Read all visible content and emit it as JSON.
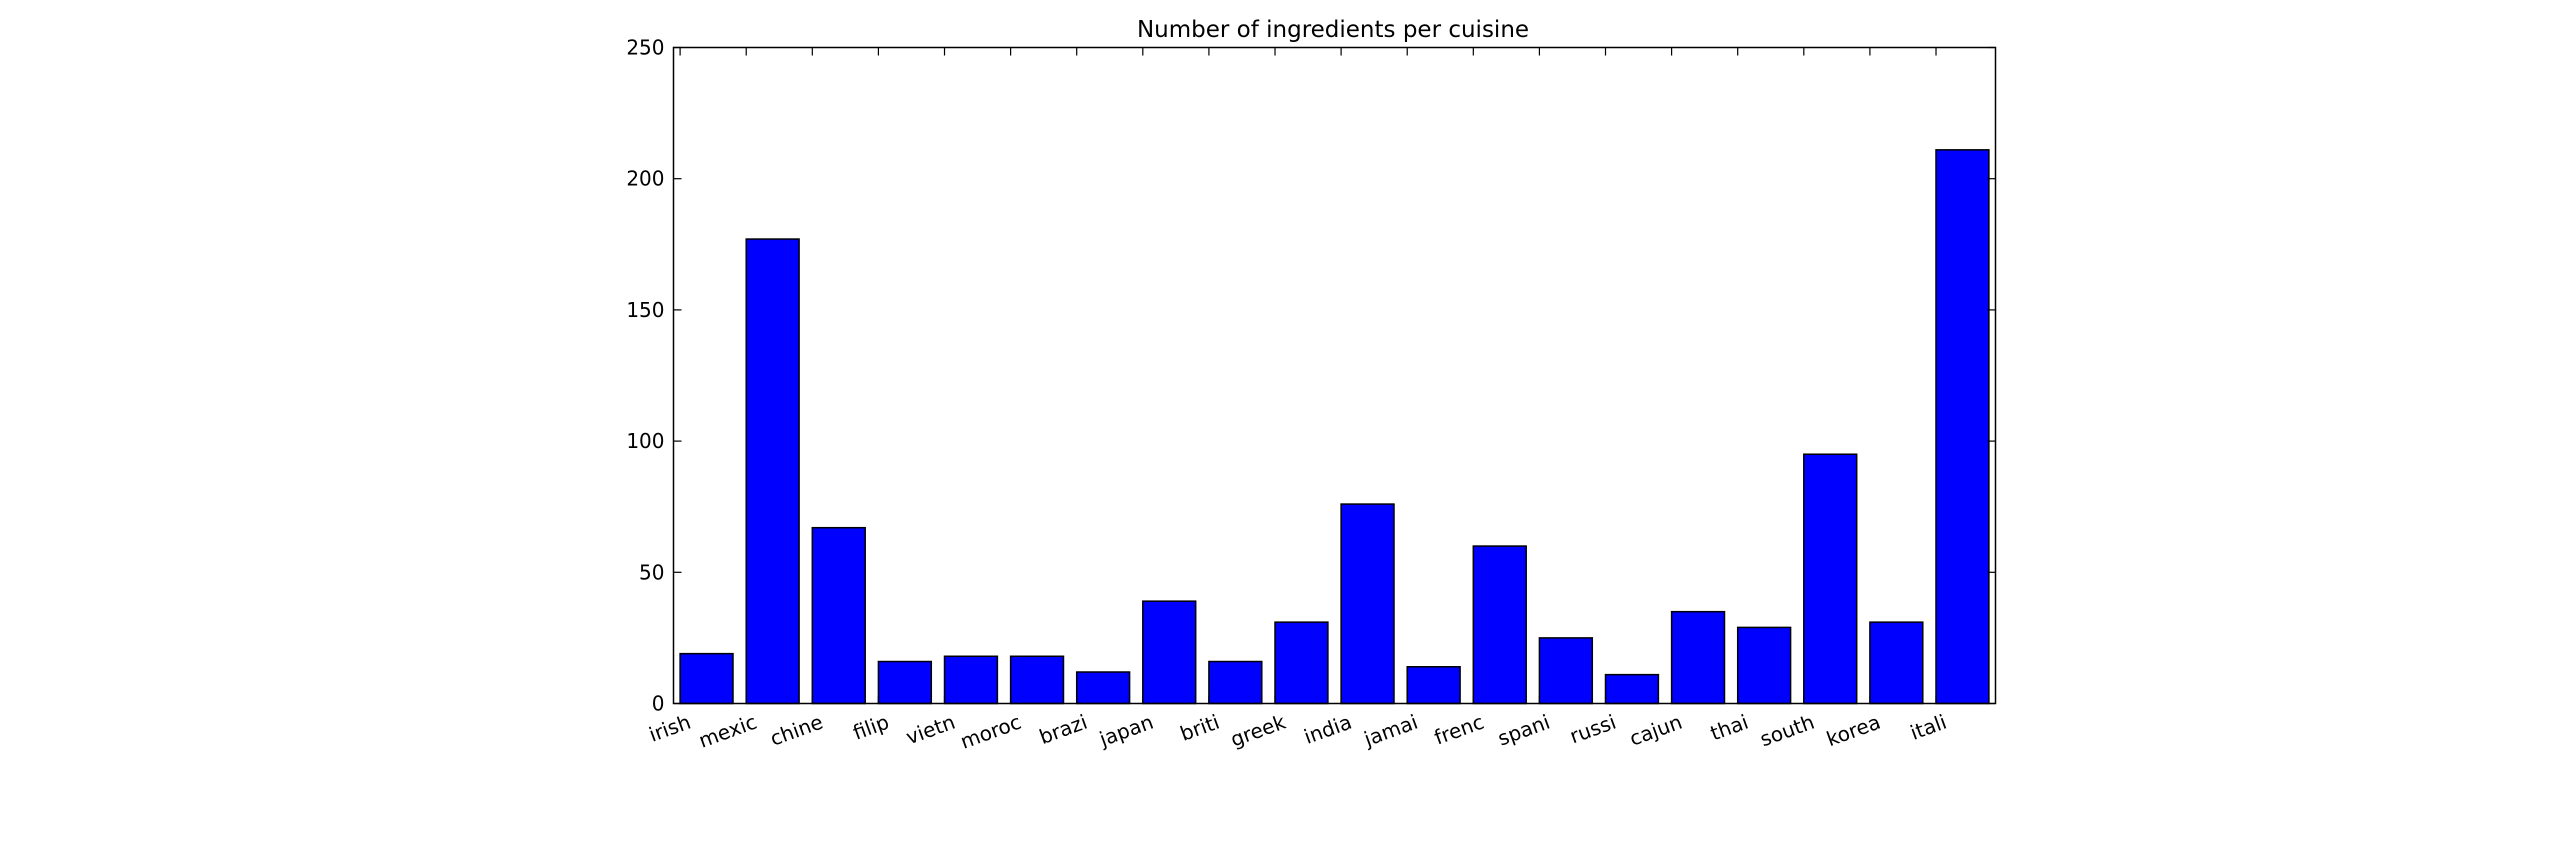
{
  "chart_data": {
    "type": "bar",
    "title": "Number of ingredients per cuisine",
    "xlabel": "",
    "ylabel": "",
    "categories": [
      "irish",
      "mexic",
      "chine",
      "filip",
      "vietn",
      "moroc",
      "brazi",
      "japan",
      "briti",
      "greek",
      "india",
      "jamai",
      "frenc",
      "spani",
      "russi",
      "cajun",
      "thai",
      "south",
      "korea",
      "itali"
    ],
    "values": [
      19,
      177,
      67,
      16,
      18,
      18,
      12,
      39,
      16,
      31,
      76,
      14,
      60,
      25,
      11,
      35,
      29,
      95,
      31,
      211
    ],
    "ylim": [
      0,
      250
    ],
    "yticks": [
      0,
      50,
      100,
      150,
      200,
      250
    ],
    "grid": false,
    "legend": "none",
    "colors": {
      "bar": "#0000ff",
      "bar_edge": "#000000",
      "axes": "#000000",
      "background": "#ffffff"
    }
  }
}
